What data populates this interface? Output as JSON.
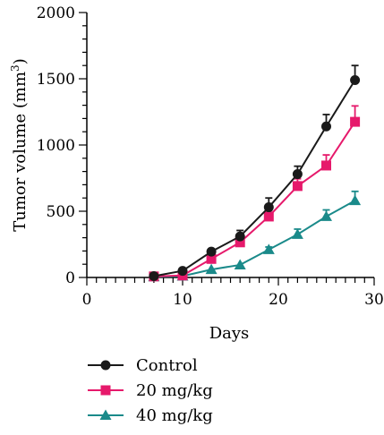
{
  "chart_data": {
    "type": "line",
    "title": "",
    "xlabel": "Days",
    "ylabel": "Tumor volume (mm",
    "ylabel_superscript": "3",
    "ylabel_suffix": ")",
    "xlim": [
      0,
      30
    ],
    "ylim": [
      0,
      2000
    ],
    "x_ticks": [
      "0",
      "10",
      "20",
      "30"
    ],
    "y_ticks": [
      "0",
      "500",
      "1000",
      "1500",
      "2000"
    ],
    "grid": false,
    "legend_position": "bottom-left",
    "x": [
      7,
      10,
      13,
      16,
      19,
      22,
      25,
      28
    ],
    "series": [
      {
        "name": "Control",
        "color": "#1a1a1a",
        "marker": "circle",
        "values": [
          10,
          50,
          195,
          310,
          530,
          780,
          1140,
          1490
        ],
        "errors": [
          5,
          8,
          20,
          45,
          70,
          60,
          90,
          110
        ]
      },
      {
        "name": "20 mg/kg",
        "color": "#e6196b",
        "marker": "square",
        "values": [
          8,
          15,
          140,
          265,
          460,
          690,
          845,
          1175
        ],
        "errors": [
          4,
          6,
          20,
          30,
          45,
          55,
          80,
          120
        ]
      },
      {
        "name": "40 mg/kg",
        "color": "#1a8a8a",
        "marker": "triangle",
        "values": [
          5,
          10,
          60,
          95,
          210,
          325,
          460,
          580
        ],
        "errors": [
          3,
          4,
          8,
          10,
          20,
          40,
          50,
          70
        ]
      }
    ]
  }
}
